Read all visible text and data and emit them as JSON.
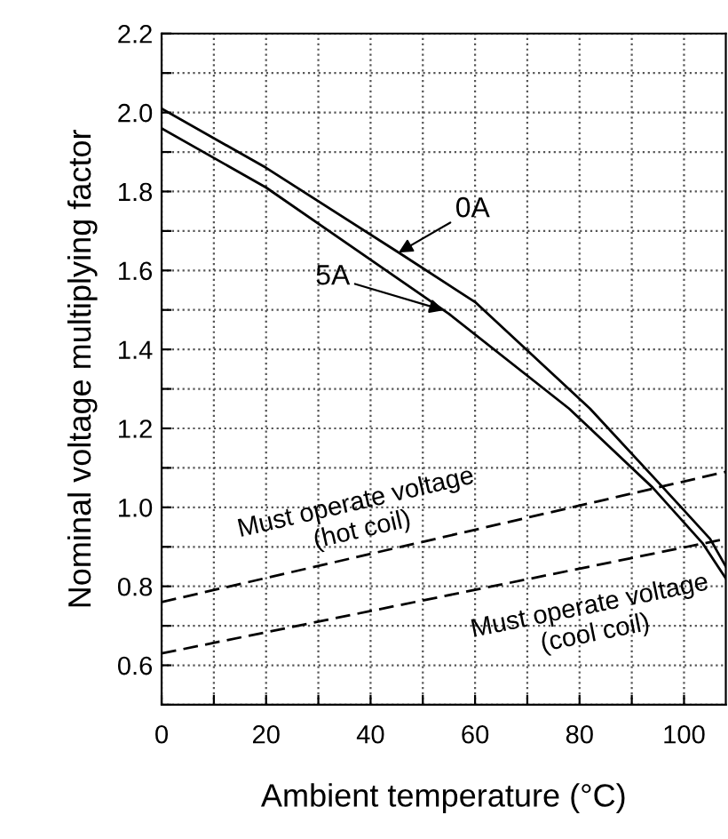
{
  "chart_data": {
    "type": "line",
    "xlabel": "Ambient temperature (°C)",
    "ylabel": "Nominal voltage multiplying factor",
    "xlim": [
      0,
      108
    ],
    "ylim": [
      0.5,
      2.2
    ],
    "xticks": [
      0,
      {
        "value": 10,
        "label": null
      },
      20,
      {
        "value": 30,
        "label": null
      },
      40,
      {
        "value": 50,
        "label": null
      },
      60,
      {
        "value": 70,
        "label": null
      },
      80,
      {
        "value": 90,
        "label": null
      },
      100
    ],
    "yticks": [
      {
        "value": 0.5,
        "label": null
      },
      {
        "value": 0.6,
        "label": "0.6"
      },
      {
        "value": 0.7,
        "label": null
      },
      {
        "value": 0.8,
        "label": "0.8"
      },
      {
        "value": 0.9,
        "label": null
      },
      {
        "value": 1.0,
        "label": "1.0"
      },
      {
        "value": 1.1,
        "label": null
      },
      {
        "value": 1.2,
        "label": "1.2"
      },
      {
        "value": 1.3,
        "label": null
      },
      {
        "value": 1.4,
        "label": "1.4"
      },
      {
        "value": 1.5,
        "label": null
      },
      {
        "value": 1.6,
        "label": "1.6"
      },
      {
        "value": 1.7,
        "label": null
      },
      {
        "value": 1.8,
        "label": "1.8"
      },
      {
        "value": 1.9,
        "label": null
      },
      {
        "value": 2.0,
        "label": "2.0"
      },
      {
        "value": 2.1,
        "label": null
      },
      {
        "value": 2.2,
        "label": "2.2"
      }
    ],
    "grid": true,
    "legend": false,
    "marker": "none",
    "series": [
      {
        "name": "0A",
        "color": "#000000",
        "line_style": "solid",
        "x": [
          0,
          20,
          46,
          60,
          82,
          96,
          105,
          108
        ],
        "values": [
          2.01,
          1.86,
          1.64,
          1.52,
          1.25,
          1.05,
          0.92,
          0.85
        ]
      },
      {
        "name": "5A",
        "color": "#000000",
        "line_style": "solid",
        "x": [
          0,
          20,
          55,
          78,
          94,
          103.5,
          108
        ],
        "values": [
          1.96,
          1.81,
          1.49,
          1.25,
          1.05,
          0.91,
          0.82
        ]
      },
      {
        "name": "Must operate voltage\n(hot coil)",
        "color": "#000000",
        "line_style": "dashed",
        "x": [
          0,
          108
        ],
        "values": [
          0.76,
          1.09
        ]
      },
      {
        "name": "Must operate voltage\n(cool coil)",
        "color": "#000000",
        "line_style": "dashed",
        "x": [
          0,
          108
        ],
        "values": [
          0.63,
          0.92
        ]
      }
    ]
  }
}
